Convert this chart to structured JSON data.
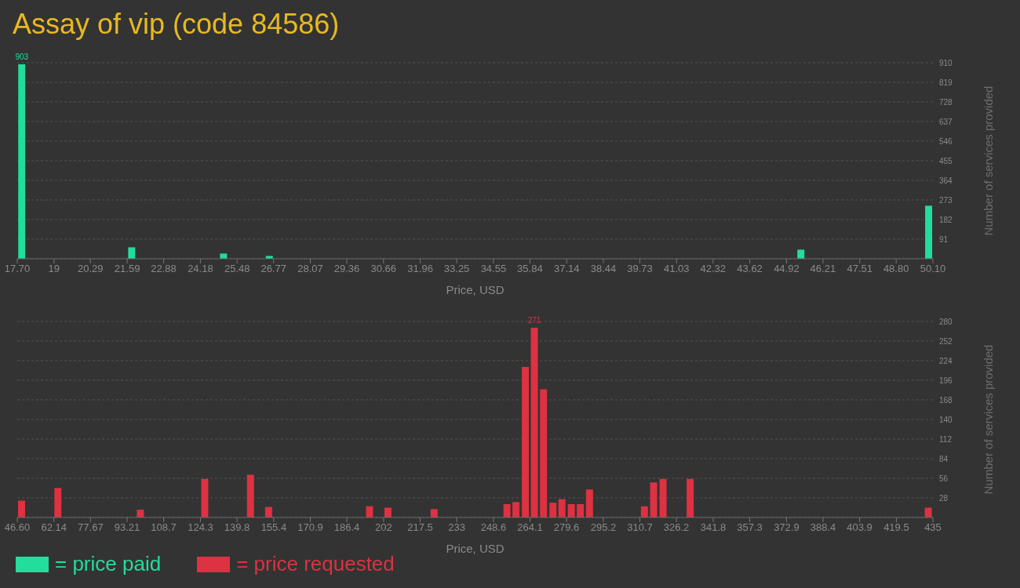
{
  "chart_data": [
    {
      "type": "bar",
      "title": "Assay of vip (code 84586)",
      "xlabel": "Price, USD",
      "ylabel": "Number of services provided",
      "x": [
        17.85,
        21.74,
        24.99,
        26.61,
        45.42,
        49.94
      ],
      "series": [
        {
          "name": "= price paid",
          "color": "#22dd9b",
          "values": [
            903,
            53,
            24,
            13,
            42,
            246
          ],
          "value_labels": [
            "903",
            null,
            null,
            null,
            null,
            null
          ]
        }
      ],
      "xlim": [
        17.7,
        50.1
      ],
      "xticks": [
        {
          "value": 17.7,
          "label": "17.70"
        },
        19,
        20.29,
        21.59,
        22.88,
        24.18,
        25.48,
        26.77,
        28.07,
        29.36,
        30.66,
        31.96,
        33.25,
        34.55,
        35.84,
        37.14,
        38.44,
        39.73,
        41.03,
        42.32,
        43.62,
        44.92,
        46.21,
        47.51,
        {
          "value": 48.8,
          "label": "48.80"
        },
        {
          "value": 50.1,
          "label": "50.10"
        }
      ],
      "ylim": [
        0,
        910
      ],
      "yticks": [
        91,
        182,
        273,
        364,
        455,
        546,
        637,
        728,
        819,
        910
      ],
      "grid": "y",
      "legend": "bottom left"
    },
    {
      "type": "bar",
      "xlabel": "Price, USD",
      "ylabel": "Number of services provided",
      "x": [
        48.5,
        63.9,
        98.9,
        126.2,
        145.6,
        153.3,
        196.1,
        203.9,
        223.5,
        254.4,
        258.2,
        262.2,
        266.0,
        269.9,
        273.9,
        277.7,
        281.7,
        285.5,
        289.4,
        312.7,
        316.6,
        320.6,
        332.1,
        433.1
      ],
      "series": [
        {
          "name": "= price requested",
          "color": "#dc3242",
          "values": [
            24,
            42,
            11,
            55,
            61,
            15,
            16,
            14,
            12,
            19,
            22,
            215,
            271,
            183,
            21,
            26,
            19,
            19,
            40,
            16,
            50,
            55,
            55,
            14
          ],
          "value_labels": [
            null,
            null,
            null,
            null,
            null,
            null,
            null,
            null,
            null,
            null,
            null,
            null,
            "271",
            null,
            null,
            null,
            null,
            null,
            null,
            null,
            null,
            null,
            null,
            null
          ]
        }
      ],
      "xlim": [
        46.6,
        435
      ],
      "xticks": [
        {
          "value": 46.6,
          "label": "46.60"
        },
        62.14,
        77.67,
        93.21,
        108.7,
        124.3,
        139.8,
        155.4,
        170.9,
        186.4,
        202,
        217.5,
        233,
        248.6,
        264.1,
        279.6,
        295.2,
        310.7,
        326.2,
        341.8,
        357.3,
        372.9,
        388.4,
        403.9,
        419.5,
        435
      ],
      "ylim": [
        0,
        280
      ],
      "yticks": [
        28,
        56,
        84,
        112,
        140,
        168,
        196,
        224,
        252,
        280
      ],
      "grid": "y",
      "legend": "bottom left"
    }
  ]
}
